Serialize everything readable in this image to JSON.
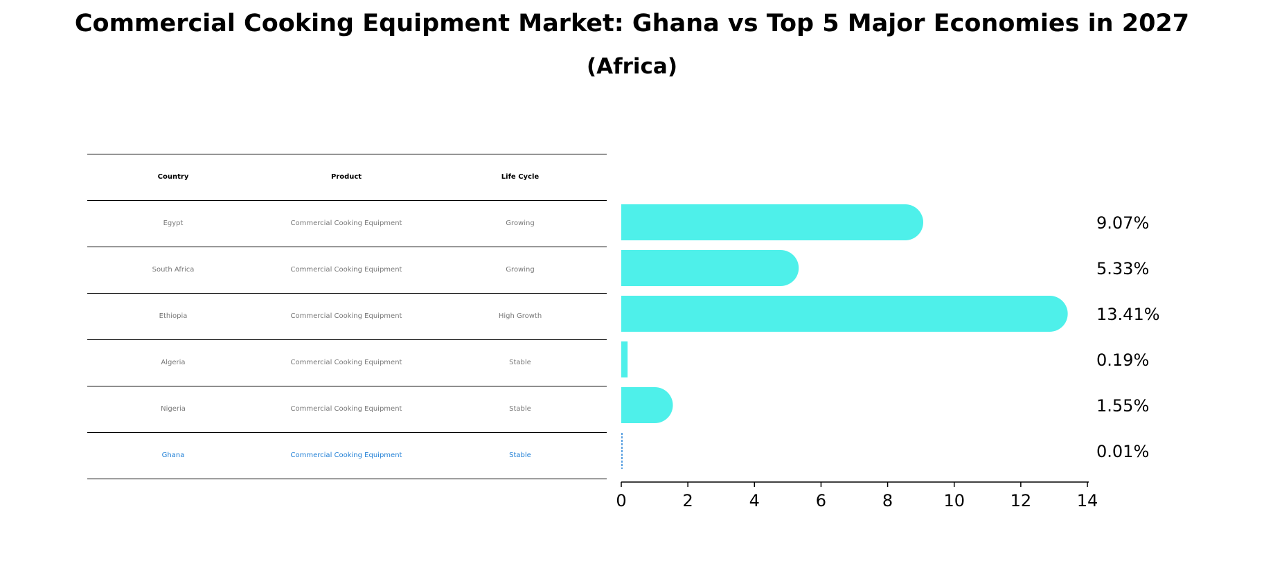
{
  "title": "Commercial Cooking Equipment Market: Ghana vs Top 5 Major Economies in 2027",
  "subtitle": "(Africa)",
  "table": {
    "headers": [
      "Country",
      "Product",
      "Life Cycle"
    ],
    "rows": [
      {
        "country": "Egypt",
        "product": "Commercial Cooking Equipment",
        "life_cycle": "Growing"
      },
      {
        "country": "South Africa",
        "product": "Commercial Cooking Equipment",
        "life_cycle": "Growing"
      },
      {
        "country": "Ethiopia",
        "product": "Commercial Cooking Equipment",
        "life_cycle": "High Growth"
      },
      {
        "country": "Algeria",
        "product": "Commercial Cooking Equipment",
        "life_cycle": "Stable"
      },
      {
        "country": "Nigeria",
        "product": "Commercial Cooking Equipment",
        "life_cycle": "Stable"
      },
      {
        "country": "Ghana",
        "product": "Commercial Cooking Equipment",
        "life_cycle": "Stable"
      }
    ],
    "highlight_color": "#1f7fd6",
    "text_color": "#777777"
  },
  "chart_data": {
    "type": "bar",
    "orientation": "horizontal",
    "categories": [
      "Egypt",
      "South Africa",
      "Ethiopia",
      "Algeria",
      "Nigeria",
      "Ghana"
    ],
    "values": [
      9.07,
      5.33,
      13.41,
      0.19,
      1.55,
      0.01
    ],
    "value_labels": [
      "9.07%",
      "5.33%",
      "13.41%",
      "0.19%",
      "1.55%",
      "0.01%"
    ],
    "xlim": [
      0,
      14
    ],
    "xticks": [
      0,
      2,
      4,
      6,
      8,
      10,
      12,
      14
    ],
    "bar_color": "#4ef0ea",
    "highlight_category": "Ghana",
    "highlight_color": "#1f7fd6",
    "grid": false
  }
}
